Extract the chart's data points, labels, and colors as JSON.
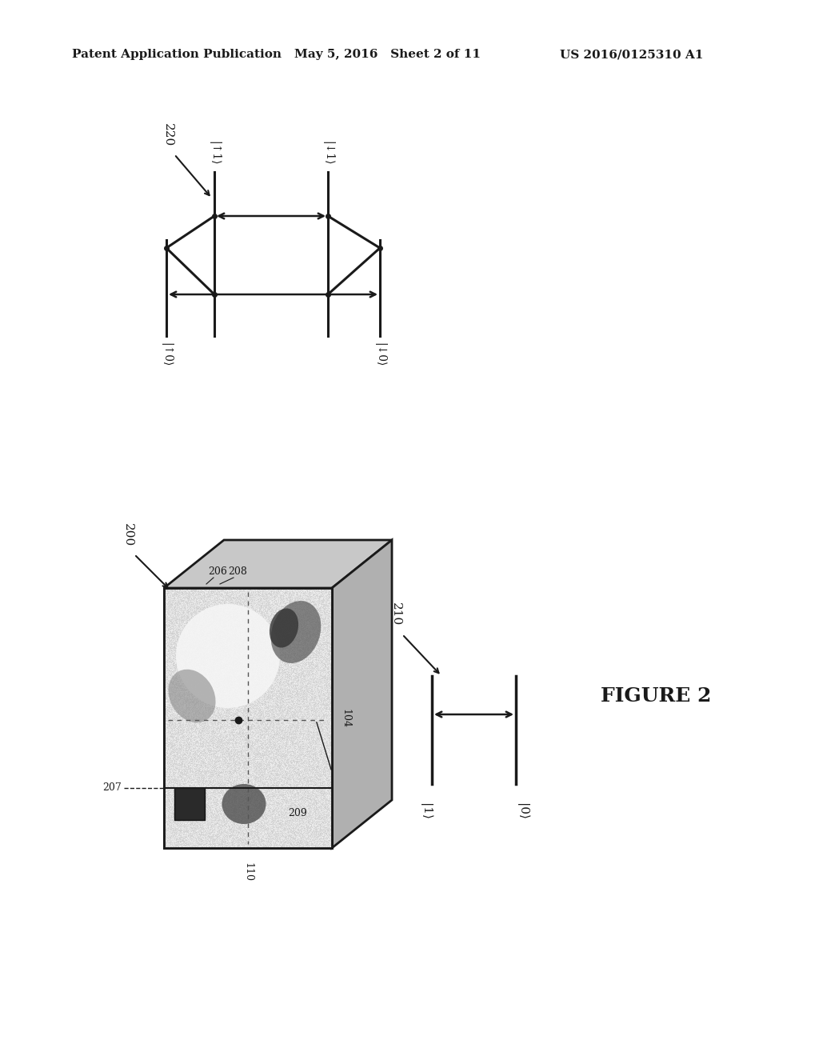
{
  "header_left": "Patent Application Publication",
  "header_mid": "May 5, 2016   Sheet 2 of 11",
  "header_right": "US 2016/0125310 A1",
  "figure_label": "FIGURE 2",
  "label_220": "220",
  "label_200": "200",
  "label_210": "210",
  "label_207": "207",
  "label_104": "104",
  "label_110": "110",
  "label_206": "206",
  "label_208": "208",
  "label_209": "209",
  "state_up0": "|↑0⟩",
  "state_up1": "|↑1⟩",
  "state_dn0": "|↓0⟩",
  "state_dn1": "|↓1⟩",
  "state_1": "|1⟩",
  "state_0": "|0⟩",
  "bg_color": "#ffffff",
  "line_color": "#1a1a1a",
  "text_color": "#1a1a1a"
}
